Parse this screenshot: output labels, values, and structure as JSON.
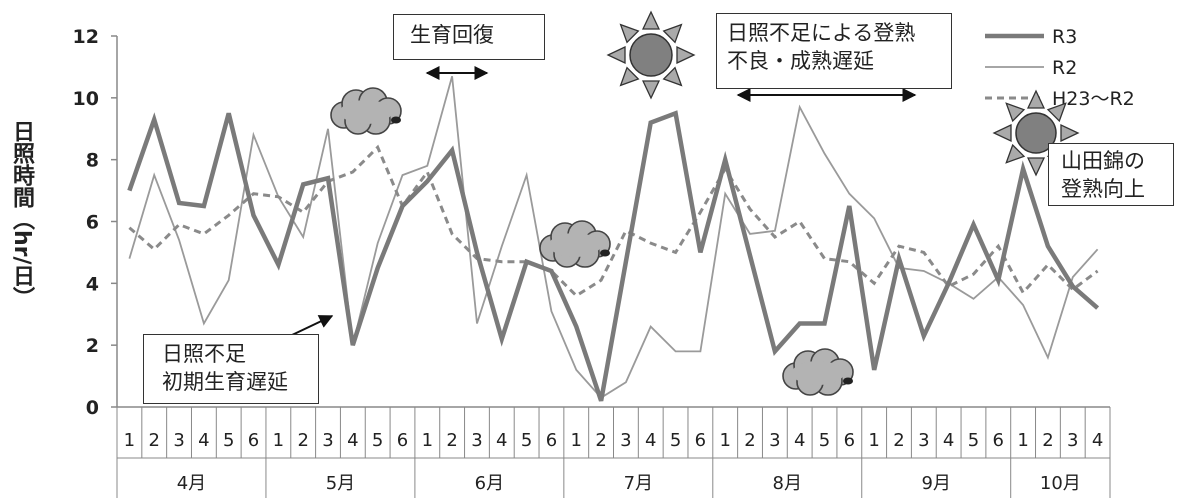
{
  "chart_data": {
    "type": "line",
    "ylabel": "日照時間（hr/日）",
    "ylim": [
      0,
      12
    ],
    "yticks": [
      "0",
      "2",
      "4",
      "6",
      "8",
      "10",
      "12"
    ],
    "week_labels": [
      "1",
      "2",
      "3",
      "4",
      "5",
      "6",
      "1",
      "2",
      "3",
      "4",
      "5",
      "6",
      "1",
      "2",
      "3",
      "4",
      "5",
      "6",
      "1",
      "2",
      "3",
      "4",
      "5",
      "6",
      "1",
      "2",
      "3",
      "4",
      "5",
      "6",
      "1",
      "2",
      "3",
      "4",
      "5",
      "6",
      "1",
      "2",
      "3",
      "4"
    ],
    "months": [
      "4月",
      "5月",
      "6月",
      "7月",
      "8月",
      "9月",
      "10月"
    ],
    "series": [
      {
        "name": "R3",
        "color": "#7a7a7a",
        "style": "thick",
        "values": [
          7.0,
          9.3,
          6.6,
          6.5,
          9.5,
          6.2,
          4.6,
          7.2,
          7.4,
          2.0,
          4.5,
          6.5,
          7.3,
          8.3,
          5.0,
          2.2,
          4.7,
          4.4,
          2.6,
          0.2,
          4.7,
          9.2,
          9.5,
          5.0,
          8.0,
          4.9,
          1.8,
          2.7,
          2.7,
          6.5,
          1.2,
          4.8,
          2.3,
          4.0,
          5.9,
          4.1,
          7.7,
          5.2,
          3.9,
          3.2
        ]
      },
      {
        "name": "R2",
        "color": "#9a9a9a",
        "style": "thin",
        "values": [
          4.8,
          7.5,
          5.4,
          2.7,
          4.1,
          8.8,
          6.8,
          5.5,
          9.0,
          2.0,
          5.3,
          7.5,
          7.8,
          10.7,
          2.7,
          5.2,
          7.5,
          3.1,
          1.2,
          0.3,
          0.8,
          2.6,
          1.8,
          1.8,
          6.9,
          5.6,
          5.7,
          9.7,
          8.2,
          6.9,
          6.1,
          4.5,
          4.4,
          4.0,
          3.5,
          4.2,
          3.3,
          1.6,
          4.2,
          5.1
        ]
      },
      {
        "name": "H23〜R2",
        "color": "#8a8a8a",
        "style": "dashed",
        "values": [
          5.8,
          5.1,
          5.9,
          5.6,
          6.2,
          6.9,
          6.8,
          6.3,
          7.3,
          7.6,
          8.4,
          6.5,
          7.6,
          5.6,
          4.8,
          4.7,
          4.7,
          4.4,
          3.6,
          4.1,
          5.7,
          5.3,
          5.0,
          6.3,
          7.7,
          6.4,
          5.5,
          6.0,
          4.8,
          4.7,
          4.0,
          5.2,
          5.0,
          3.9,
          4.3,
          5.2,
          3.7,
          4.6,
          3.8,
          4.4
        ]
      }
    ],
    "legend_position": "top-right",
    "grid": false
  },
  "notes": {
    "growth_recovery": "生育回復",
    "poor_ripening": "日照不足による登熟\n不良・成熟遅延",
    "sunshine_shortage": "日照不足\n初期生育遅延",
    "yamadanishiki": "山田錦の\n登熟向上"
  },
  "icons": [
    "cloud-icon",
    "sun-icon"
  ]
}
